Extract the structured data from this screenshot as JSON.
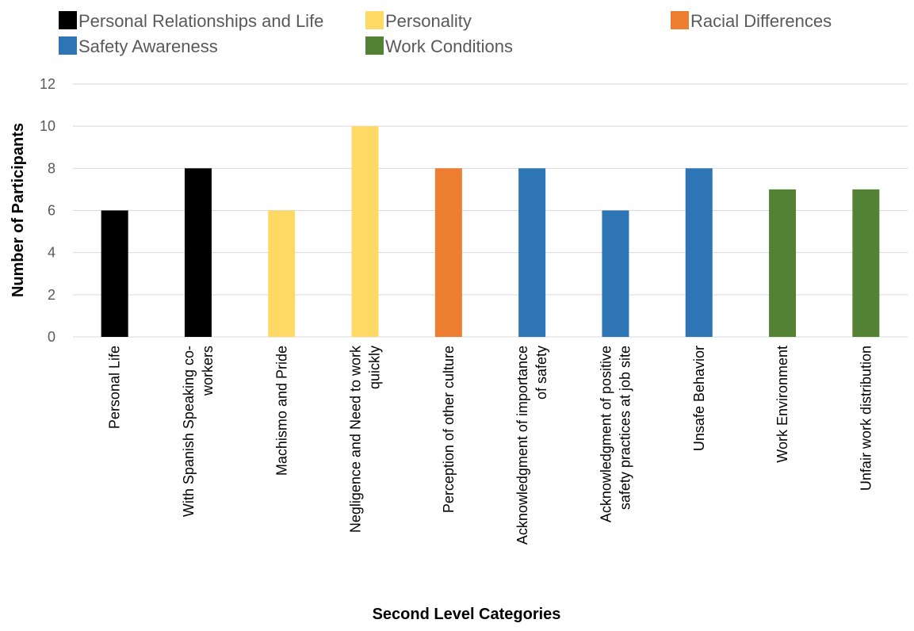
{
  "chart_data": {
    "type": "bar",
    "xlabel": "Second Level Categories",
    "ylabel": "Number of Participants",
    "ylim": [
      0,
      12
    ],
    "yticks": [
      0,
      2,
      4,
      6,
      8,
      10,
      12
    ],
    "grid": true,
    "legend_position": "top",
    "legend": [
      {
        "name": "Personal Relationships and Life",
        "color": "#000000"
      },
      {
        "name": "Personality",
        "color": "#FFD966"
      },
      {
        "name": "Racial Differences",
        "color": "#ED7D31"
      },
      {
        "name": "Safety Awareness",
        "color": "#2E75B6"
      },
      {
        "name": "Work Conditions",
        "color": "#548235"
      }
    ],
    "categories": [
      [
        "Personal Life"
      ],
      [
        "With Spanish Speaking co-",
        "workers"
      ],
      [
        "Machismo and Pride"
      ],
      [
        "Negligence and Need to work",
        "quickly"
      ],
      [
        "Perception of other culture"
      ],
      [
        "Acknowledgment of importance",
        "of safety"
      ],
      [
        "Acknowledgment of positive",
        "safety practices at job site"
      ],
      [
        "Unsafe Behavior"
      ],
      [
        "Work Environment"
      ],
      [
        "Unfair work distribution"
      ]
    ],
    "values": [
      6,
      8,
      6,
      10,
      8,
      8,
      6,
      8,
      7,
      7
    ],
    "group": [
      0,
      0,
      1,
      1,
      2,
      3,
      3,
      3,
      4,
      4
    ]
  }
}
